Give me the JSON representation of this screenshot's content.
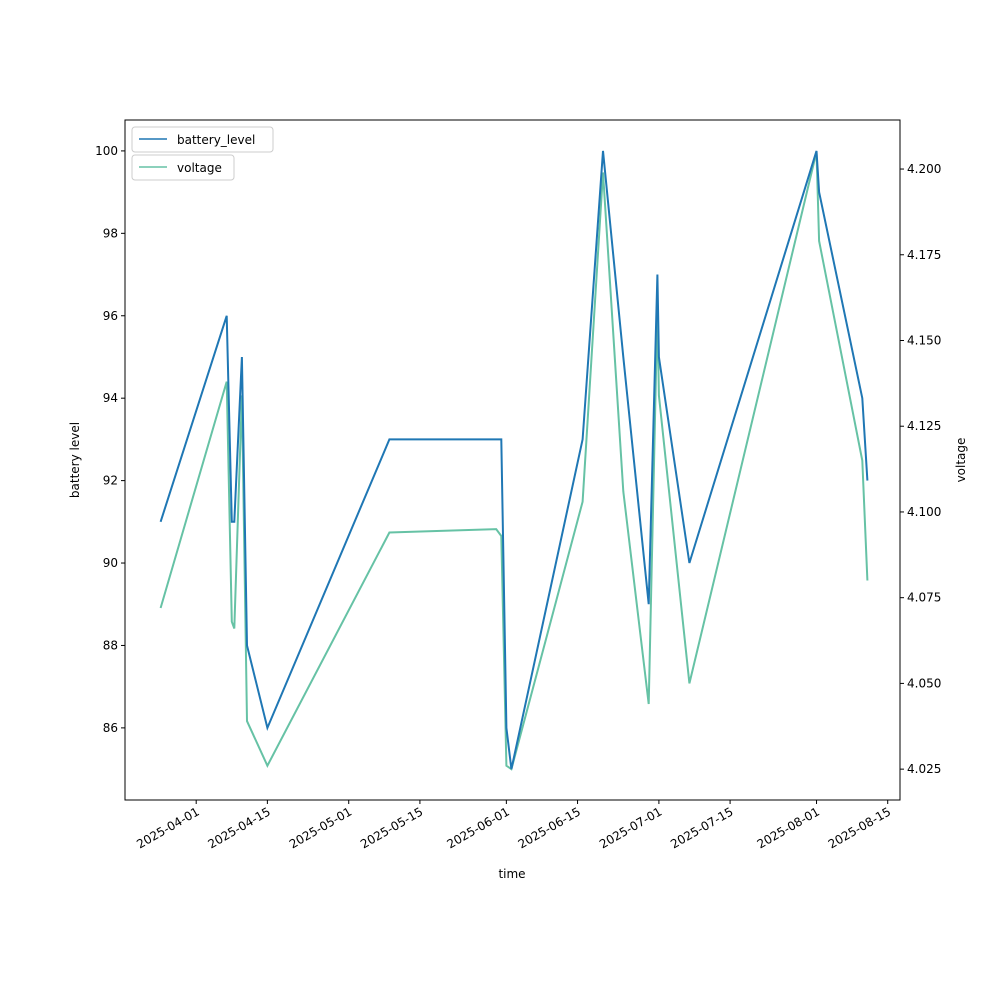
{
  "chart_data": {
    "type": "line",
    "title": "",
    "xlabel": "time",
    "ylabel": "battery level",
    "ylabel_right": "voltage",
    "xlim": [
      "2025-03-18",
      "2025-08-17T10:00"
    ],
    "ylim": [
      84.25,
      100.75
    ],
    "ylim_right": [
      4.016,
      4.2143
    ],
    "grid": false,
    "x_ticks": [
      "2025-04-01",
      "2025-04-15",
      "2025-05-01",
      "2025-05-15",
      "2025-06-01",
      "2025-06-15",
      "2025-07-01",
      "2025-07-15",
      "2025-08-01",
      "2025-08-15"
    ],
    "y_ticks": [
      86,
      88,
      90,
      92,
      94,
      96,
      98,
      100
    ],
    "y_ticks_right": [
      "4.025",
      "4.050",
      "4.075",
      "4.100",
      "4.125",
      "4.150",
      "4.175",
      "4.200"
    ],
    "legends": [
      {
        "entries": [
          "battery_level"
        ],
        "placement": "upper-left"
      },
      {
        "entries": [
          "voltage"
        ],
        "placement": "upper-left"
      }
    ],
    "x": [
      "2025-03-25",
      "2025-04-07",
      "2025-04-08",
      "2025-04-08T12:00",
      "2025-04-10",
      "2025-04-11",
      "2025-04-15",
      "2025-05-09",
      "2025-05-30",
      "2025-05-31",
      "2025-06-01",
      "2025-06-02",
      "2025-06-16",
      "2025-06-20",
      "2025-06-24",
      "2025-06-29",
      "2025-06-30T17:00",
      "2025-07-01",
      "2025-07-07",
      "2025-08-01",
      "2025-08-01T12:00",
      "2025-08-10",
      "2025-08-11"
    ],
    "series": [
      {
        "name": "battery_level",
        "axis": "left",
        "color": "#1f77b4",
        "values": [
          91,
          96,
          91,
          91,
          95,
          88,
          86,
          93,
          93,
          93,
          86,
          85,
          93,
          100,
          95,
          89,
          97,
          95,
          90,
          100,
          99,
          94,
          92
        ]
      },
      {
        "name": "voltage",
        "axis": "right",
        "color": "#66c2a5",
        "values": [
          4.072,
          4.138,
          4.068,
          4.066,
          4.134,
          4.039,
          4.026,
          4.094,
          4.095,
          4.093,
          4.026,
          4.025,
          4.103,
          4.199,
          4.106,
          4.044,
          4.159,
          4.134,
          4.05,
          4.205,
          4.179,
          4.115,
          4.08
        ]
      }
    ]
  }
}
